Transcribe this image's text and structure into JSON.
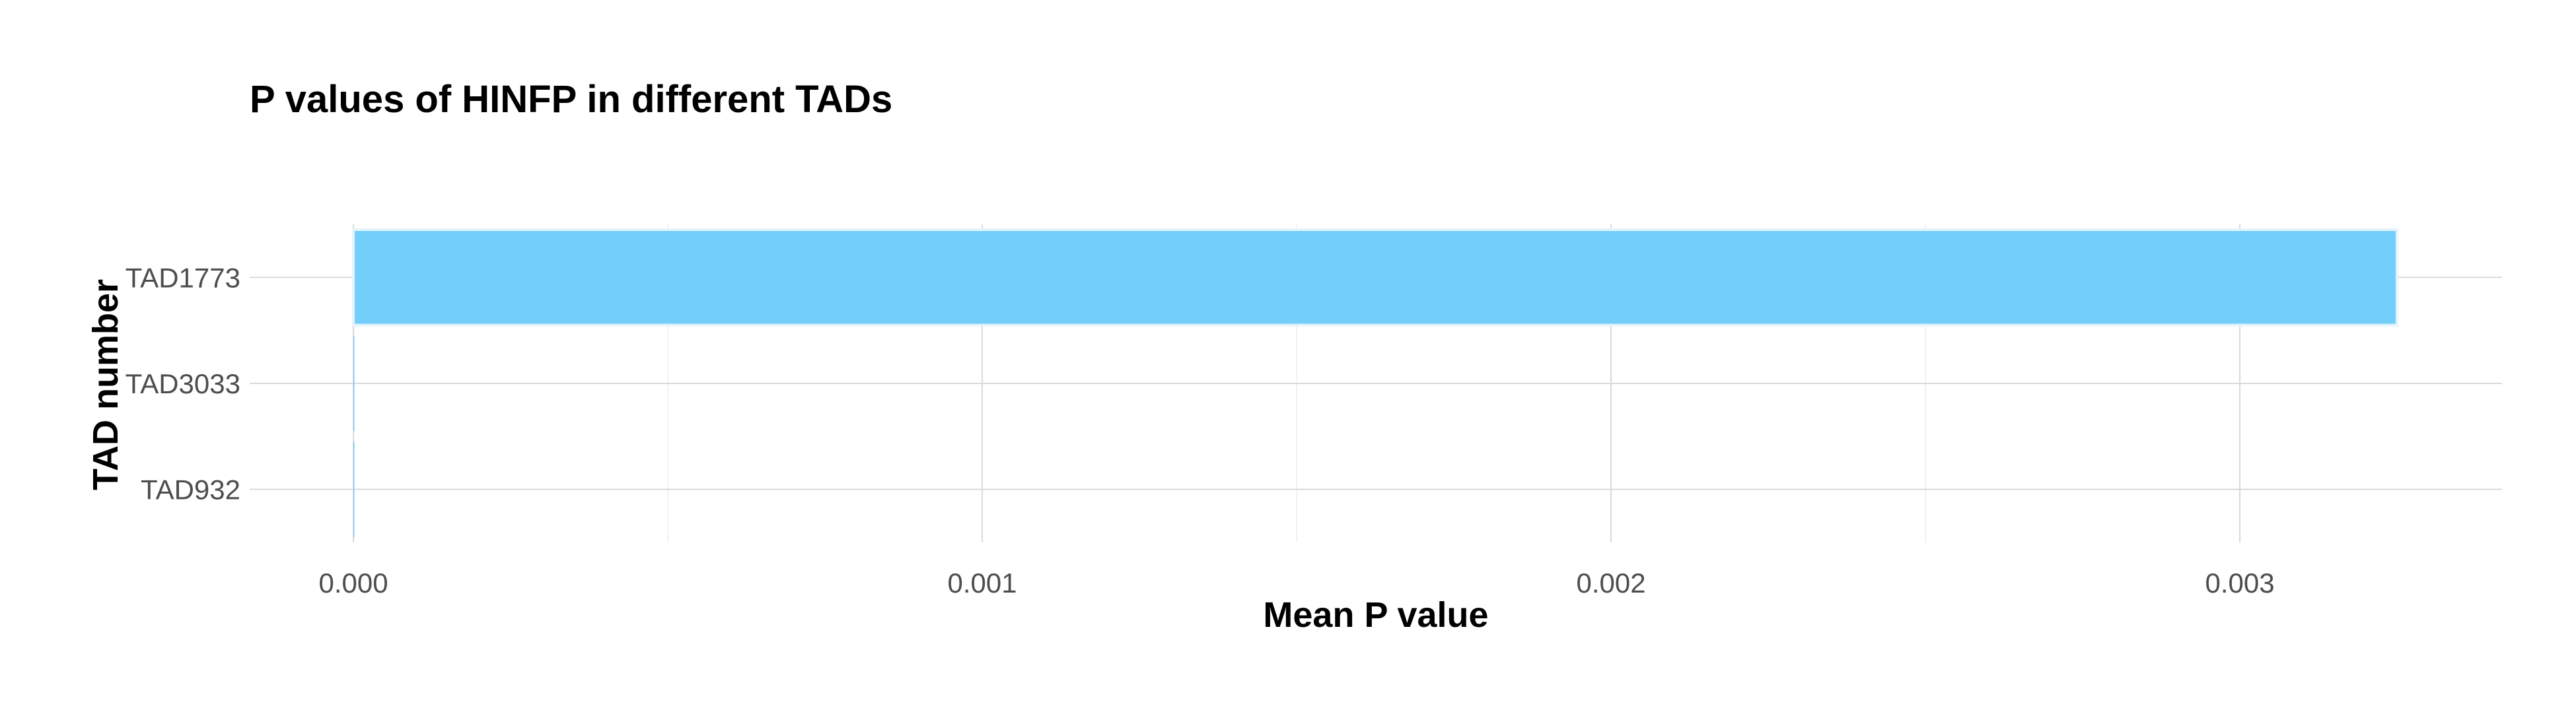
{
  "chart_data": {
    "type": "bar",
    "orientation": "horizontal",
    "title": "P values of HINFP in different TADs",
    "xlabel": "Mean P value",
    "ylabel": "TAD number",
    "categories": [
      "TAD1773",
      "TAD3033",
      "TAD932"
    ],
    "values": [
      0.00325,
      5e-07,
      2e-07
    ],
    "xlim": [
      -0.000165,
      0.003417
    ],
    "x_ticks": [
      0.0,
      0.001,
      0.002,
      0.003
    ],
    "x_tick_labels": [
      "0.000",
      "0.001",
      "0.002",
      "0.003"
    ],
    "x_minor_ticks": [
      0.0005,
      0.0015,
      0.0025
    ],
    "grid": true,
    "bar_fill": "#73cefa",
    "bar_stroke": "#e3f4fd",
    "grid_color": "#d9d9d9",
    "background": "#ffffff"
  }
}
